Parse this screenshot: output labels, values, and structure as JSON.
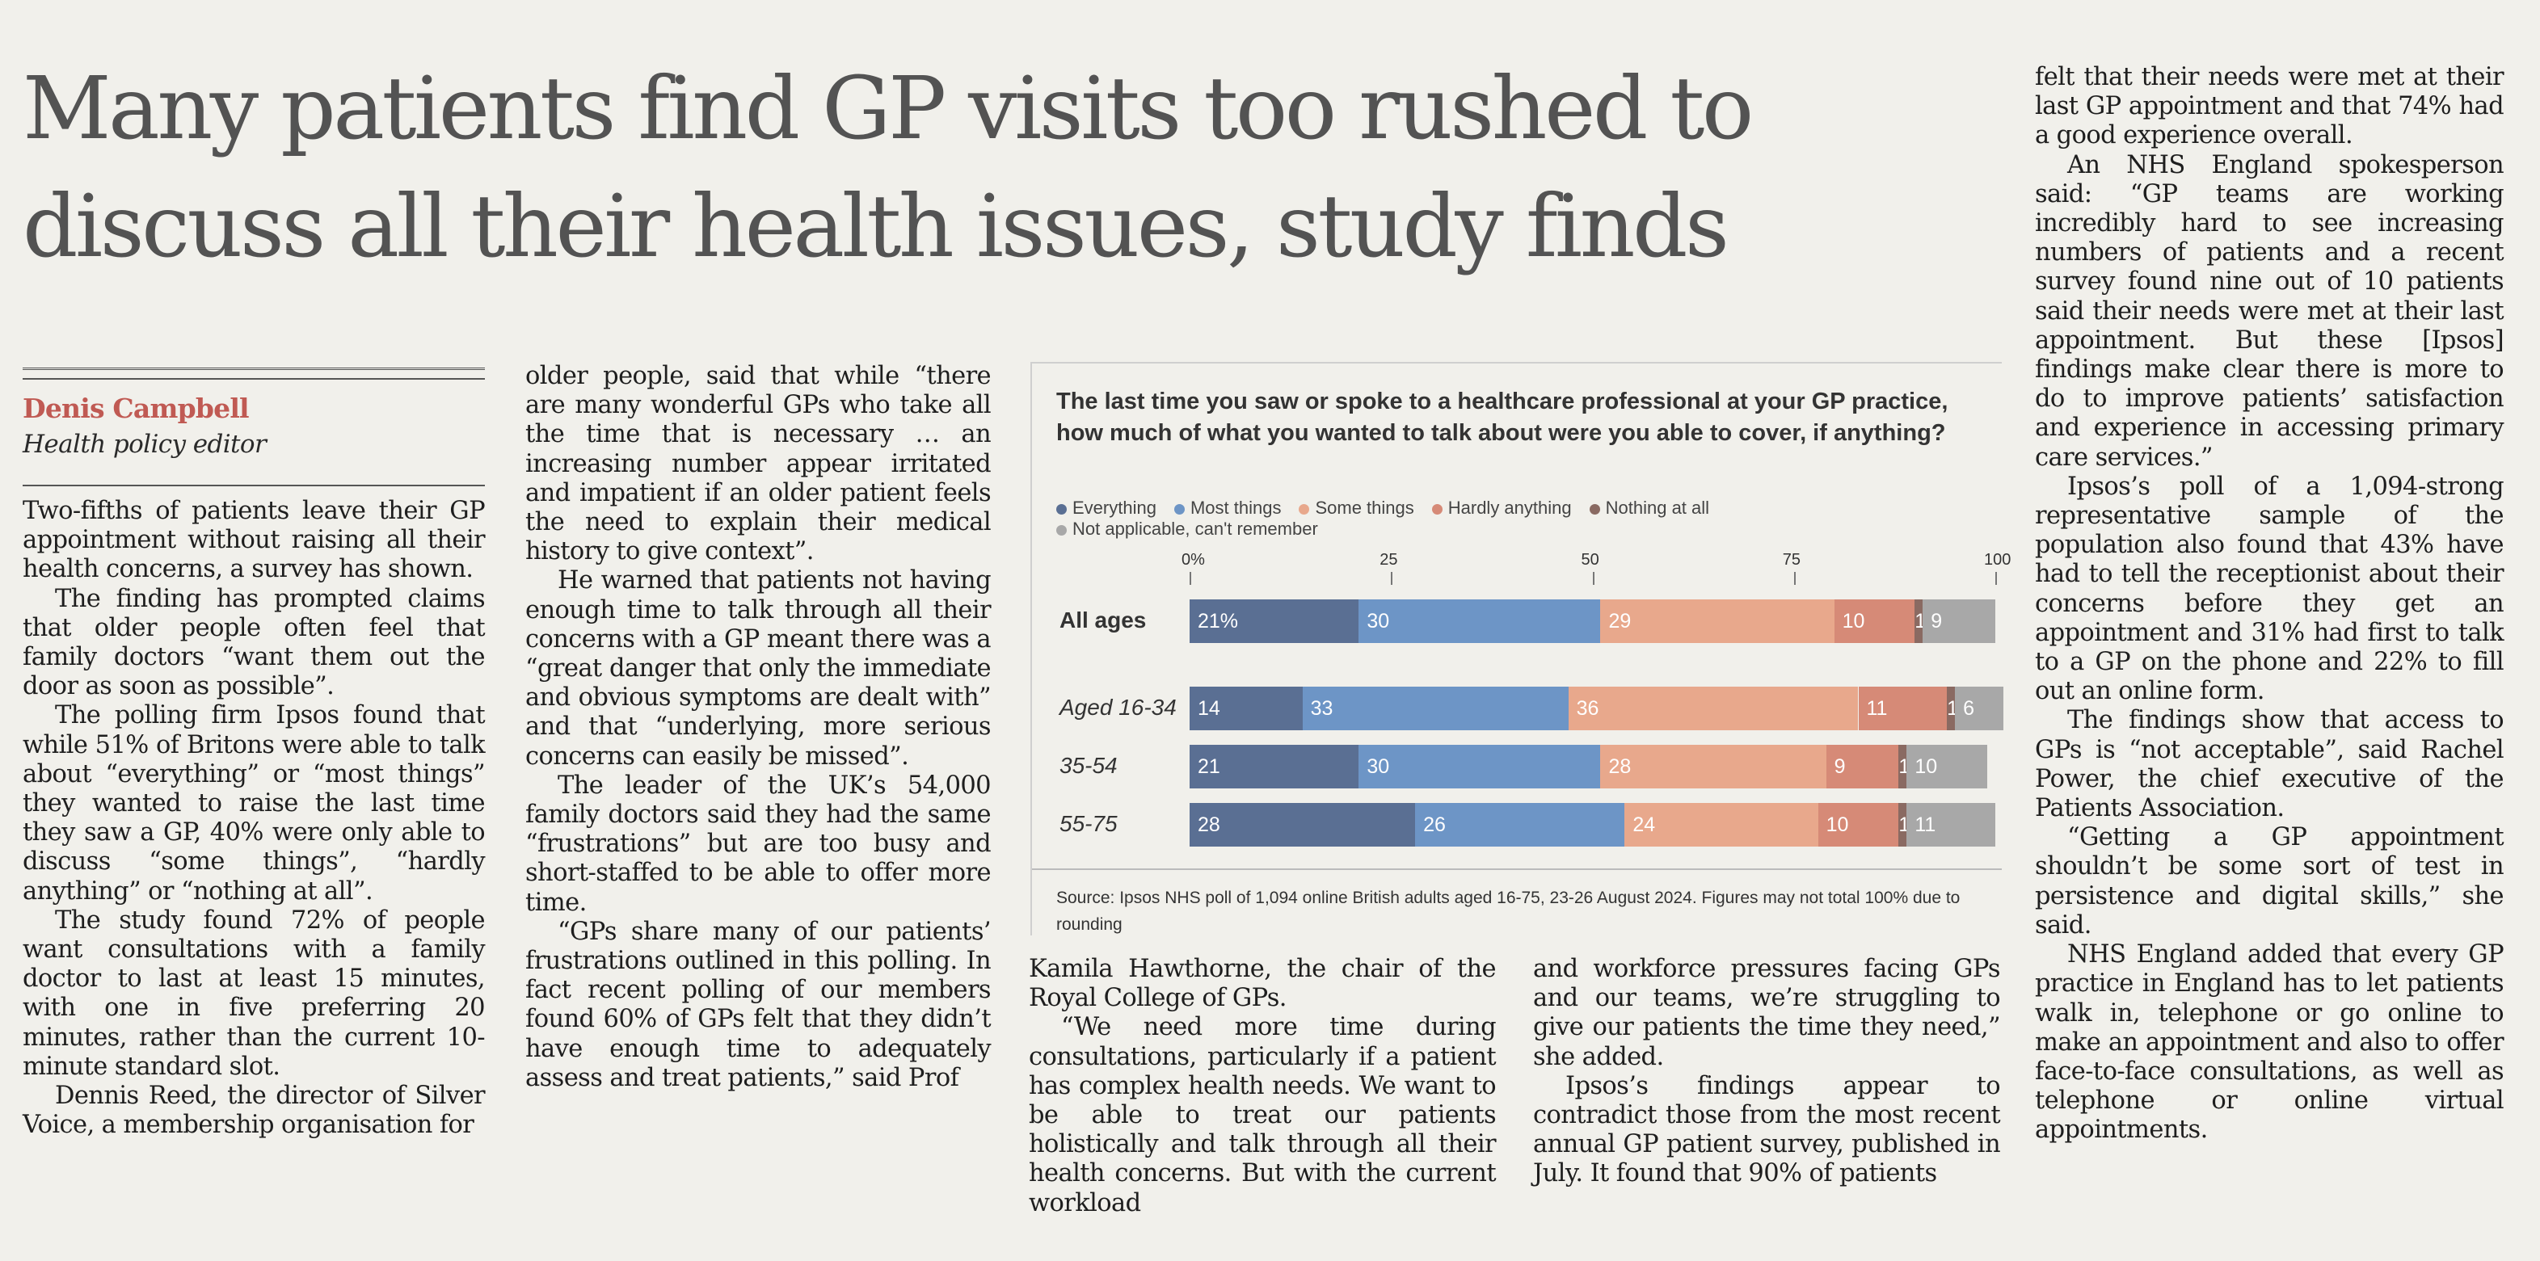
{
  "headline": "Many patients find GP visits too rushed to discuss all their health issues, study finds",
  "byline": {
    "name": "Denis Campbell",
    "role": "Health policy editor"
  },
  "columns": {
    "col1": [
      "Two-fifths of patients leave their GP appointment without raising all their health concerns, a survey has shown.",
      "The finding has prompted claims that older people often feel that family doctors “want them out the door as soon as possible”.",
      "The polling firm Ipsos found that while 51% of Britons were able to talk about “everything” or “most things” they wanted to raise the last time they saw a GP, 40% were only able to discuss “some things”, “hardly anything” or “nothing at all”.",
      "The study found 72% of people want consultations with a family doctor to last at least 15 minutes, with one in five preferring 20 minutes, rather than the current 10-minute standard slot.",
      "Dennis Reed, the director of Silver Voice, a membership organisation for"
    ],
    "col2": [
      "older people, said that while “there are many wonderful GPs who take all the time that is necessary … an increasing number appear irritated and impatient if an older patient feels the need to explain their medical history to give context”.",
      "He warned that patients not having enough time to talk through all their concerns with a GP meant there was a “great danger that only the immediate and obvious symptoms are dealt with” and that “underlying, more serious concerns can easily be missed”.",
      "The leader of the UK’s 54,000 family doctors said they had the same “frustrations” but are too busy and short-staffed to be able to offer more time.",
      "“GPs share many of our patients’ frustrations outlined in this polling. In fact recent polling of our members found 60% of GPs felt that they didn’t have enough time to adequately assess and treat patients,” said Prof"
    ],
    "col3": [
      "Kamila Hawthorne, the chair of the Royal College of GPs.",
      "“We need more time during consultations, particularly if a patient has complex health needs. We want to be able to treat our patients holistically and talk through all their health concerns. But with the current workload"
    ],
    "col4": [
      "and workforce pressures facing GPs and our teams, we’re struggling to give our patients the time they need,” she added.",
      "Ipsos’s findings appear to contradict those from the most recent annual GP patient survey, published in July. It found that 90% of patients"
    ],
    "col5": [
      "felt that their needs were met at their last GP appointment and that 74% had a good experience overall.",
      "An NHS England spokesperson said: “GP teams are working incredibly hard to see increasing numbers of patients and a recent survey found nine out of 10 patients said their needs were met at their last appointment. But these [Ipsos] findings make clear there is more to do to improve patients’ satisfaction and experience in accessing primary care services.”",
      "Ipsos’s poll of a 1,094-strong representative sample of the population also found that 43% have had to tell the receptionist about their concerns before they get an appointment and 31% had first to talk to a GP on the phone and 22% to fill out an online form.",
      "The findings show that access to GPs is “not acceptable”, said Rachel Power, the chief executive of the Patients Association.",
      "“Getting a GP appointment shouldn’t be some sort of test in persistence and digital skills,” she said.",
      "NHS England added that every GP practice in England has to let patients walk in, telephone or go online to make an appointment and also to offer face-to-face consultations, as well as telephone or online virtual appointments."
    ]
  },
  "chart_data": {
    "type": "bar",
    "orientation": "horizontal-stacked",
    "title": "The last time you saw or spoke to a healthcare professional at your GP practice, how much of what you wanted to talk about were you able to cover, if anything?",
    "legend_position": "top",
    "xlim": [
      0,
      100
    ],
    "ticks": [
      "0%",
      "25",
      "50",
      "75",
      "100"
    ],
    "tick_values": [
      0,
      25,
      50,
      75,
      100
    ],
    "categories": [
      "All ages",
      "Aged 16-34",
      "35-54",
      "55-75"
    ],
    "series": [
      {
        "name": "Everything",
        "color": "#5a6f93",
        "values": [
          21,
          14,
          21,
          28
        ]
      },
      {
        "name": "Most things",
        "color": "#6d95c6",
        "values": [
          30,
          33,
          30,
          26
        ]
      },
      {
        "name": "Some things",
        "color": "#e8a88c",
        "values": [
          29,
          36,
          28,
          24
        ]
      },
      {
        "name": "Hardly anything",
        "color": "#d68a77",
        "values": [
          10,
          11,
          9,
          10
        ]
      },
      {
        "name": "Nothing at all",
        "color": "#8a6a62",
        "values": [
          1,
          1,
          1,
          1
        ]
      },
      {
        "name": "Not applicable, can't remember",
        "color": "#a8a8a8",
        "values": [
          9,
          6,
          10,
          11
        ]
      }
    ],
    "labels": [
      [
        "21%",
        "30",
        "29",
        "10",
        "1",
        "9"
      ],
      [
        "14",
        "33",
        "36",
        "11",
        "1",
        "6"
      ],
      [
        "21",
        "30",
        "28",
        "9",
        "1",
        "10"
      ],
      [
        "28",
        "26",
        "24",
        "10",
        "1",
        "11"
      ]
    ],
    "source": "Source: Ipsos NHS poll of 1,094 online British adults aged 16-75, 23-26 August 2024. Figures may not total 100% due to rounding"
  }
}
